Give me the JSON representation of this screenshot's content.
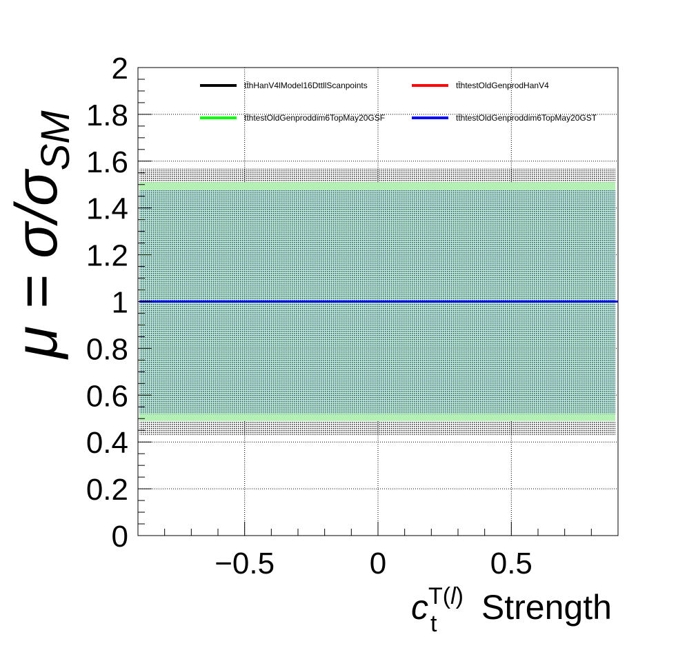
{
  "chart_data": {
    "type": "line",
    "title": "",
    "xlabel": {
      "main": "c",
      "sub": "t",
      "sup_prefix": "T(",
      "sup_italic": "l",
      "sup_suffix": ")",
      "rest": " Strength"
    },
    "ylabel": {
      "prefix": "μ = σ/σ",
      "sub": "SM"
    },
    "xlim": [
      -0.9,
      0.9
    ],
    "ylim": [
      0,
      2
    ],
    "x_ticks": [
      {
        "value": -0.5,
        "label": "−0.5"
      },
      {
        "value": 0,
        "label": "0"
      },
      {
        "value": 0.5,
        "label": "0.5"
      }
    ],
    "y_ticks": [
      {
        "value": 0,
        "label": "0"
      },
      {
        "value": 0.2,
        "label": "0.2"
      },
      {
        "value": 0.4,
        "label": "0.4"
      },
      {
        "value": 0.6,
        "label": "0.6"
      },
      {
        "value": 0.8,
        "label": "0.8"
      },
      {
        "value": 1,
        "label": "1"
      },
      {
        "value": 1.2,
        "label": "1.2"
      },
      {
        "value": 1.4,
        "label": "1.4"
      },
      {
        "value": 1.6,
        "label": "1.6"
      },
      {
        "value": 1.8,
        "label": "1.8"
      },
      {
        "value": 2,
        "label": "2"
      }
    ],
    "grid": true,
    "legend_position": "top",
    "bands": [
      {
        "name": "outer",
        "low": 0.43,
        "high": 1.57,
        "color": "#1e1e1e"
      },
      {
        "name": "green",
        "low": 0.49,
        "high": 1.51,
        "color": "#7df07d"
      },
      {
        "name": "inner",
        "low": 0.52,
        "high": 1.48,
        "color": "#2626c8"
      }
    ],
    "series": [
      {
        "name": "tt̄hHanV4lModel16DttllScanpoints",
        "color": "#000000",
        "x": [
          -0.9,
          0.9
        ],
        "y": [
          1,
          1
        ]
      },
      {
        "name": "tt̄htestOldGenprodHanV4",
        "color": "#ff0000",
        "x": [
          -0.9,
          0.9
        ],
        "y": [
          1,
          1
        ]
      },
      {
        "name": "tt̄htestOldGenproddim6TopMay20GSF",
        "color": "#00ff00",
        "x": [
          -0.9,
          0.9
        ],
        "y": [
          1,
          1
        ]
      },
      {
        "name": "tt̄htestOldGenproddim6TopMay20GST",
        "color": "#0000ff",
        "x": [
          -0.9,
          0.9
        ],
        "y": [
          1,
          1
        ]
      }
    ]
  }
}
